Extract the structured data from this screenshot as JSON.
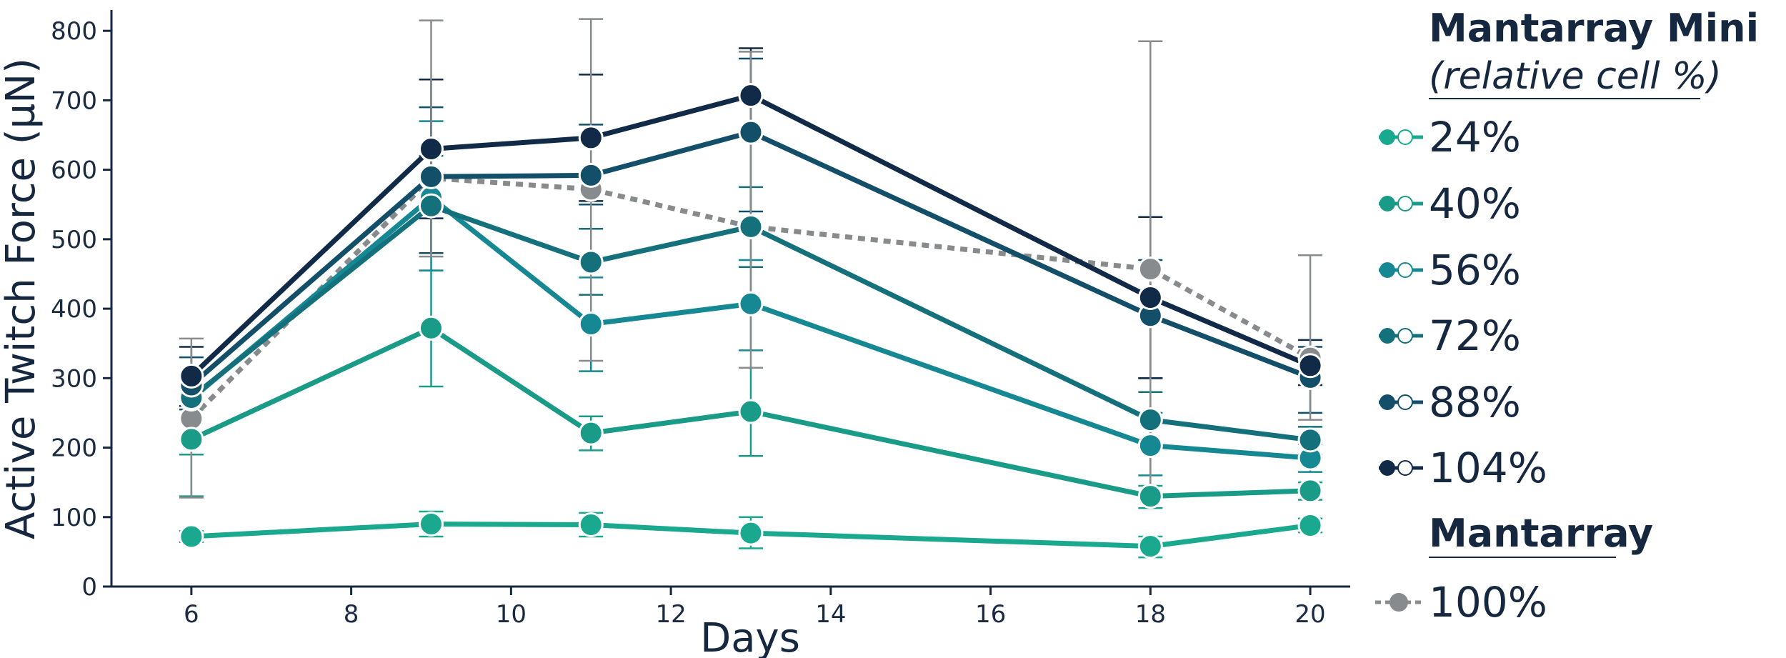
{
  "chart_data": {
    "type": "line",
    "xlabel": "Days",
    "ylabel": "Active Twitch Force (µN)",
    "xlim": [
      5,
      20.5
    ],
    "ylim": [
      0,
      830
    ],
    "xticks": [
      6,
      8,
      10,
      12,
      14,
      16,
      18,
      20
    ],
    "yticks": [
      0,
      100,
      200,
      300,
      400,
      500,
      600,
      700,
      800
    ],
    "x": [
      6,
      9,
      11,
      13,
      18,
      20
    ],
    "grid": false,
    "legend_position": "right",
    "legend": {
      "group1_title": "Mantarray Mini",
      "group1_subtitle": "(relative cell %)",
      "group2_title": "Mantarray"
    },
    "series": [
      {
        "name": "24%",
        "group": 1,
        "color": "#1aa98e",
        "style": "solid",
        "values": [
          72,
          90,
          89,
          77,
          58,
          88
        ],
        "err_low": [
          64,
          72,
          72,
          55,
          42,
          78
        ],
        "err_high": [
          80,
          108,
          106,
          100,
          72,
          98
        ]
      },
      {
        "name": "40%",
        "group": 1,
        "color": "#1a9b88",
        "style": "solid",
        "values": [
          212,
          372,
          221,
          252,
          130,
          138
        ],
        "err_low": [
          130,
          288,
          196,
          188,
          113,
          125
        ],
        "err_high": [
          190,
          455,
          245,
          315,
          145,
          150
        ]
      },
      {
        "name": "56%",
        "group": 1,
        "color": "#168893",
        "style": "solid",
        "values": [
          270,
          560,
          378,
          407,
          203,
          185
        ],
        "err_low": [
          240,
          455,
          310,
          340,
          160,
          165
        ],
        "err_high": [
          300,
          670,
          445,
          470,
          250,
          205
        ]
      },
      {
        "name": "72%",
        "group": 1,
        "color": "#14717c",
        "style": "solid",
        "values": [
          272,
          548,
          467,
          518,
          240,
          211
        ],
        "err_low": [
          240,
          480,
          420,
          460,
          200,
          190
        ],
        "err_high": [
          300,
          620,
          515,
          575,
          280,
          230
        ]
      },
      {
        "name": "88%",
        "group": 1,
        "color": "#134f68",
        "style": "solid",
        "values": [
          290,
          590,
          592,
          654,
          390,
          301
        ],
        "err_low": [
          255,
          480,
          550,
          540,
          300,
          250
        ],
        "err_high": [
          330,
          690,
          665,
          760,
          470,
          345
        ]
      },
      {
        "name": "104%",
        "group": 1,
        "color": "#102a47",
        "style": "solid",
        "values": [
          303,
          630,
          646,
          707,
          416,
          318
        ],
        "err_low": [
          260,
          530,
          555,
          655,
          300,
          290
        ],
        "err_high": [
          345,
          730,
          737,
          775,
          532,
          355
        ]
      },
      {
        "name": "100%",
        "group": 2,
        "color": "#888b8e",
        "style": "dotted",
        "values": [
          242,
          588,
          572,
          518,
          457,
          329
        ],
        "err_low": [
          128,
          475,
          325,
          315,
          130,
          240
        ],
        "err_high": [
          357,
          815,
          817,
          770,
          785,
          477
        ]
      }
    ]
  }
}
